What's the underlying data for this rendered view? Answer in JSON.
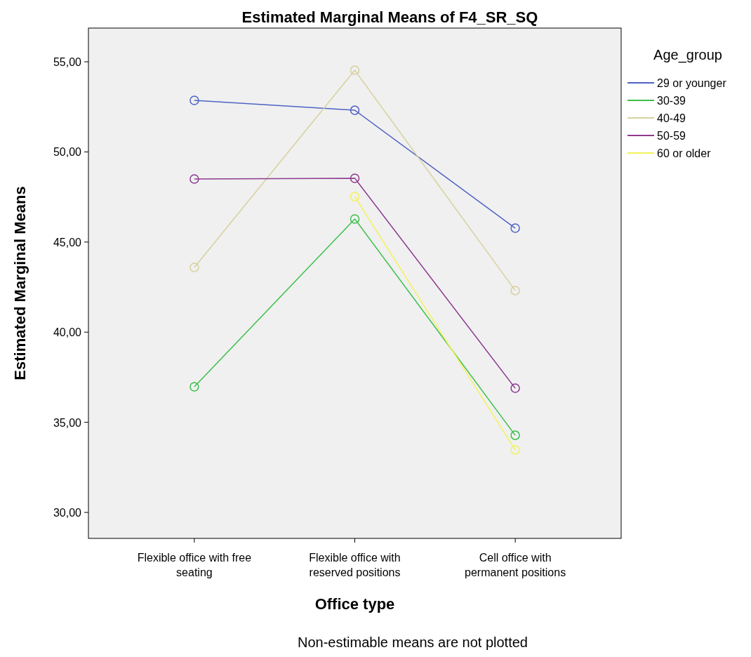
{
  "chart_data": {
    "type": "line",
    "title": "Estimated Marginal Means of F4_SR_SQ",
    "xlabel": "Office type",
    "ylabel": "Estimated Marginal Means",
    "legend_title": "Age_group",
    "annotations": [
      "Non-estimable means are not plotted"
    ],
    "categories": [
      "Flexible office with free seating",
      "Flexible office with reserved positions",
      "Cell office with permanent positions"
    ],
    "series": [
      {
        "name": "29 or younger",
        "color": "#4f63c4",
        "values": [
          52.86,
          52.31,
          45.77
        ]
      },
      {
        "name": "30-39",
        "color": "#3cbf4a",
        "values": [
          36.97,
          46.28,
          34.28
        ]
      },
      {
        "name": "40-49",
        "color": "#d6d19e",
        "values": [
          43.59,
          54.53,
          42.31
        ]
      },
      {
        "name": "50-59",
        "color": "#8e3a8e",
        "values": [
          48.5,
          48.54,
          36.89
        ]
      },
      {
        "name": "60 or older",
        "color": "#f2f25a",
        "values": [
          null,
          47.52,
          33.47
        ]
      }
    ],
    "ylim": [
      28.56,
      56.87
    ],
    "yticks": [
      {
        "value": 30,
        "label": "30,00"
      },
      {
        "value": 35,
        "label": "35,00"
      },
      {
        "value": 40,
        "label": "40,00"
      },
      {
        "value": 45,
        "label": "45,00"
      },
      {
        "value": 50,
        "label": "50,00"
      },
      {
        "value": 55,
        "label": "55,00"
      }
    ],
    "grid": false,
    "legend": "right",
    "marker": "circle",
    "line_style": "solid"
  }
}
